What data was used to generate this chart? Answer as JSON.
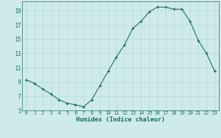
{
  "x": [
    0,
    1,
    2,
    3,
    4,
    5,
    6,
    7,
    8,
    9,
    10,
    11,
    12,
    13,
    14,
    15,
    16,
    17,
    18,
    19,
    20,
    21,
    22,
    23
  ],
  "y": [
    9.3,
    8.8,
    8.0,
    7.3,
    6.5,
    6.0,
    5.8,
    5.5,
    6.5,
    8.5,
    10.5,
    12.5,
    14.2,
    16.5,
    17.5,
    18.8,
    19.5,
    19.5,
    19.2,
    19.2,
    17.5,
    14.8,
    13.0,
    10.5
  ],
  "xlabel": "Humidex (Indice chaleur)",
  "ylim": [
    5,
    20
  ],
  "xlim": [
    -0.5,
    23.5
  ],
  "yticks": [
    5,
    7,
    9,
    11,
    13,
    15,
    17,
    19
  ],
  "xticks": [
    0,
    1,
    2,
    3,
    4,
    5,
    6,
    7,
    8,
    9,
    10,
    11,
    12,
    13,
    14,
    15,
    16,
    17,
    18,
    19,
    20,
    21,
    22,
    23
  ],
  "xtick_labels": [
    "0",
    "1",
    "2",
    "3",
    "4",
    "5",
    "6",
    "7",
    "8",
    "9",
    "10",
    "11",
    "12",
    "13",
    "14",
    "15",
    "16",
    "17",
    "18",
    "19",
    "20",
    "21",
    "22",
    "23"
  ],
  "line_color": "#1a6b5a",
  "marker": "+",
  "bg_color": "#ceeaea",
  "grid_color": "#b8d8d8",
  "tick_color": "#1a6b5a",
  "xlabel_color": "#1a6b5a"
}
